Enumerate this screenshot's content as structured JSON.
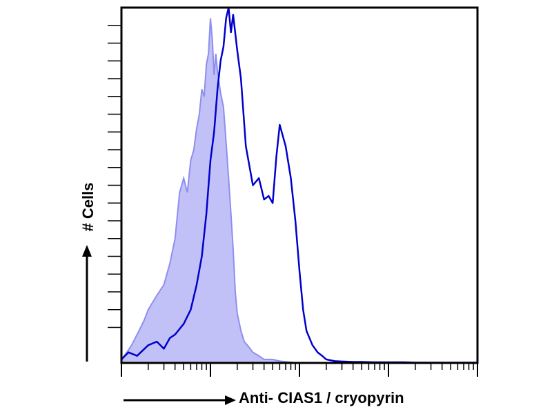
{
  "chart_data": {
    "type": "area",
    "title": "",
    "xlabel": "Anti- CIAS1 / cryopyrin",
    "ylabel": "# Cells",
    "x_scale": "log",
    "xlim": [
      0.1,
      1000
    ],
    "ylim": [
      0,
      100
    ],
    "grid": false,
    "legend": "none",
    "series": [
      {
        "style": "filled",
        "color": "#8e8ef0",
        "x": [
          0.1,
          0.115,
          0.13,
          0.15,
          0.18,
          0.2,
          0.25,
          0.3,
          0.35,
          0.4,
          0.45,
          0.5,
          0.55,
          0.6,
          0.65,
          0.7,
          0.75,
          0.8,
          0.85,
          0.9,
          0.95,
          1.0,
          1.05,
          1.1,
          1.15,
          1.2,
          1.3,
          1.4,
          1.5,
          1.6,
          1.7,
          1.8,
          1.9,
          2.0,
          2.2,
          2.4,
          2.6,
          3.0,
          3.5,
          4.0,
          5.0,
          6.0,
          8.0,
          10.0
        ],
        "values": [
          1,
          3,
          5,
          8,
          12,
          15,
          19,
          22,
          28,
          35,
          48,
          52,
          48,
          57,
          60,
          66,
          70,
          77,
          75,
          84,
          87,
          97,
          91,
          81,
          87,
          82,
          76,
          72,
          62,
          52,
          42,
          32,
          20,
          14,
          9,
          6,
          5,
          3,
          2,
          1,
          1,
          0.5,
          0.2,
          0
        ]
      },
      {
        "style": "line",
        "color": "#0000cc",
        "x": [
          0.1,
          0.12,
          0.15,
          0.2,
          0.25,
          0.3,
          0.35,
          0.4,
          0.5,
          0.6,
          0.7,
          0.8,
          0.9,
          1.0,
          1.1,
          1.2,
          1.3,
          1.4,
          1.5,
          1.6,
          1.7,
          1.8,
          2.0,
          2.2,
          2.5,
          3.0,
          3.5,
          4.0,
          4.5,
          5.0,
          5.5,
          6.0,
          7.0,
          8.0,
          9.0,
          10,
          11,
          12,
          14,
          16,
          18,
          20,
          25,
          30,
          40,
          50,
          70,
          100,
          150,
          200,
          300,
          500,
          1000
        ],
        "values": [
          1,
          3,
          2,
          5,
          6,
          4,
          7,
          8,
          11,
          15,
          22,
          30,
          42,
          57,
          65,
          77,
          85,
          89,
          97,
          100,
          93,
          98,
          88,
          80,
          61,
          50,
          52,
          46,
          47,
          45,
          58,
          67,
          61,
          52,
          40,
          26,
          15,
          9,
          5,
          3,
          2,
          1,
          0.5,
          0.4,
          0.3,
          0.3,
          0.2,
          0.2,
          0.2,
          0.1,
          0.1,
          0.1,
          0.1
        ]
      }
    ]
  }
}
